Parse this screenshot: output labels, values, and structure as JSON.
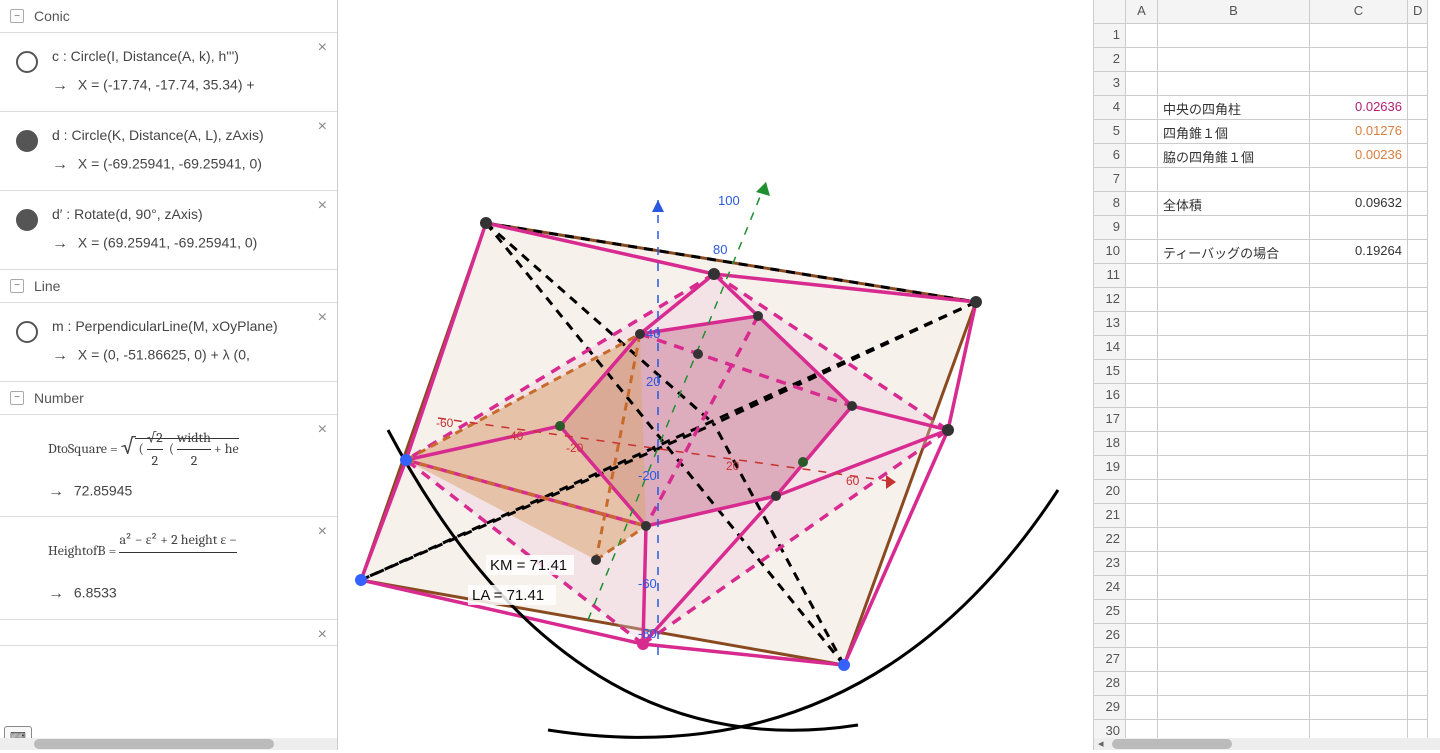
{
  "algebra": {
    "categories": [
      {
        "name": "Conic",
        "items": [
          {
            "vis": "empty",
            "definition": "c : Circle(I, Distance(A, k), h''')",
            "value": "X = (-17.74, -17.74, 35.34) +"
          },
          {
            "vis": "filled",
            "definition": "d : Circle(K, Distance(A, L), zAxis)",
            "value": "X = (-69.25941, -69.25941, 0)"
          },
          {
            "vis": "filled",
            "definition": "d′ : Rotate(d, 90°, zAxis)",
            "value": "X = (69.25941, -69.25941, 0)"
          }
        ]
      },
      {
        "name": "Line",
        "items": [
          {
            "vis": "empty",
            "definition": "m : PerpendicularLine(M, xOyPlane)",
            "value": "X = (0, -51.86625, 0) + λ (0,"
          }
        ]
      },
      {
        "name": "Number",
        "items": [
          {
            "vis": "none",
            "formula": "DtoSquare",
            "value": "72.85945"
          },
          {
            "vis": "none",
            "formula": "HeightofB",
            "value": "6.8533"
          }
        ]
      }
    ]
  },
  "graphics": {
    "axis_ticks_z": [
      100,
      80,
      40,
      20,
      -20,
      -60,
      -80
    ],
    "axis_ticks_x_neg": [
      -60,
      -40,
      -20
    ],
    "axis_ticks_x_pos": [
      20,
      60
    ],
    "labels": {
      "KM": "KM = 71.41",
      "LA": "LA = 71.41"
    },
    "colors": {
      "outer_quad": "#8a4a20",
      "outer_quad_fill": "#d9bda3",
      "magenta": "#d82b90",
      "magenta_dark": "#b01e74",
      "inner_fill_pink": "#eec9dc",
      "inner_fill_dark": "#c67895",
      "orange": "#d97c3d",
      "black": "#000000",
      "z_axis": "#2959e0",
      "y_axis": "#1f8f30",
      "x_axis": "#c73333",
      "point_blue": "#3461ff",
      "point_dark": "#333333"
    }
  },
  "spreadsheet": {
    "columns": [
      "",
      "A",
      "B",
      "C",
      "D"
    ],
    "rows": [
      {
        "n": 1,
        "A": "",
        "B": "",
        "C": "",
        "D": ""
      },
      {
        "n": 2,
        "A": "",
        "B": "",
        "C": "",
        "D": ""
      },
      {
        "n": 3,
        "A": "",
        "B": "",
        "C": "",
        "D": ""
      },
      {
        "n": 4,
        "A": "",
        "B": "中央の四角柱",
        "C": "0.02636",
        "D": "",
        "Ccolor": "#b01e74"
      },
      {
        "n": 5,
        "A": "",
        "B": "四角錐１個",
        "C": "0.01276",
        "D": "",
        "Ccolor": "#d97c3d"
      },
      {
        "n": 6,
        "A": "",
        "B": "脇の四角錐１個",
        "C": "0.00236",
        "D": "",
        "Ccolor": "#d97c3d"
      },
      {
        "n": 7,
        "A": "",
        "B": "",
        "C": "",
        "D": ""
      },
      {
        "n": 8,
        "A": "",
        "B": "全体積",
        "C": "0.09632",
        "D": "",
        "Ccolor": "#333"
      },
      {
        "n": 9,
        "A": "",
        "B": "",
        "C": "",
        "D": ""
      },
      {
        "n": 10,
        "A": "",
        "B": "ティーバッグの場合",
        "C": "0.19264",
        "D": "",
        "Ccolor": "#333"
      },
      {
        "n": 11
      },
      {
        "n": 12
      },
      {
        "n": 13
      },
      {
        "n": 14
      },
      {
        "n": 15
      },
      {
        "n": 16
      },
      {
        "n": 17
      },
      {
        "n": 18
      },
      {
        "n": 19
      },
      {
        "n": 20
      },
      {
        "n": 21
      },
      {
        "n": 22
      },
      {
        "n": 23
      },
      {
        "n": 24
      },
      {
        "n": 25
      },
      {
        "n": 26
      },
      {
        "n": 27
      },
      {
        "n": 28
      },
      {
        "n": 29
      },
      {
        "n": 30
      }
    ]
  }
}
